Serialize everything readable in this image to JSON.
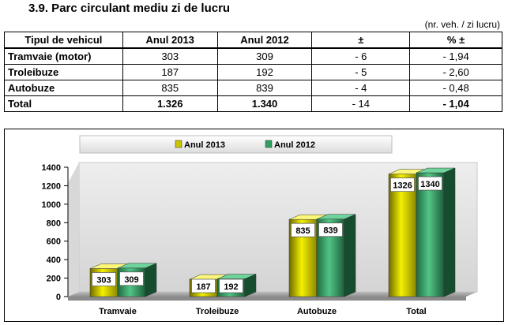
{
  "heading": "3.9.  Parc circulant mediu zi de lucru",
  "unit_note": "(nr. veh. / zi lucru)",
  "table": {
    "headers": [
      "Tipul de vehicul",
      "Anul 2013",
      "Anul 2012",
      "±",
      "% ±"
    ],
    "rows": [
      {
        "type": "Tramvaie (motor)",
        "y2013": "303",
        "y2012": "309",
        "diff": "- 6",
        "pct": "- 1,94"
      },
      {
        "type": "Troleibuze",
        "y2013": "187",
        "y2012": "192",
        "diff": "- 5",
        "pct": "- 2,60"
      },
      {
        "type": "Autobuze",
        "y2013": "835",
        "y2012": "839",
        "diff": "- 4",
        "pct": "- 0,48"
      }
    ],
    "total": {
      "type": "Total",
      "y2013": "1.326",
      "y2012": "1.340",
      "diff": "- 14",
      "pct": "- 1,04"
    }
  },
  "chart_data": {
    "type": "bar",
    "categories": [
      "Tramvaie",
      "Troleibuze",
      "Autobuze",
      "Total"
    ],
    "series": [
      {
        "name": "Anul 2013",
        "values": [
          303,
          187,
          835,
          1326
        ],
        "color": "#c8c400"
      },
      {
        "name": "Anul 2012",
        "values": [
          309,
          192,
          839,
          1340
        ],
        "color": "#2f9f63"
      }
    ],
    "ylim": [
      0,
      1400
    ],
    "yticks": [
      "0",
      "200",
      "400",
      "600",
      "800",
      "1000",
      "1200",
      "1400"
    ],
    "legend_position": "top",
    "data_labels": true,
    "style": "3d"
  }
}
